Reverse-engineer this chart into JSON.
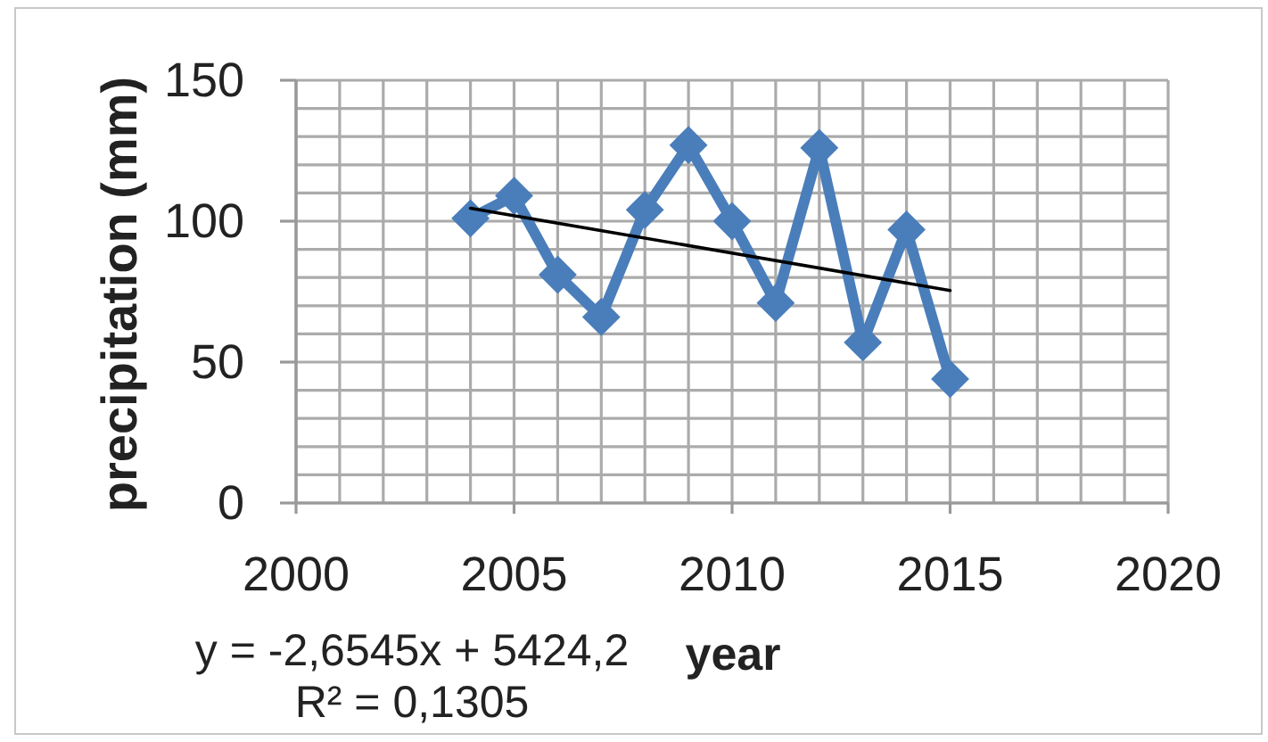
{
  "chart_data": {
    "type": "line",
    "xlabel": "year",
    "ylabel": "precipitation (mm)",
    "x": [
      2004,
      2005,
      2006,
      2007,
      2008,
      2009,
      2010,
      2011,
      2012,
      2013,
      2014,
      2015
    ],
    "series": [
      {
        "color": "#4a7ebb",
        "values": [
          101,
          109,
          81,
          66,
          104,
          127,
          100,
          71,
          126,
          57,
          97,
          44
        ]
      },
      {
        "type": "line",
        "x": [
          2004,
          2015
        ],
        "values": [
          104.6,
          75.4
        ],
        "color": "#000000",
        "marker": "none"
      }
    ],
    "xlim": [
      2000,
      2020
    ],
    "xticks": [
      2000,
      {
        "value": 2001,
        "label": null
      },
      {
        "value": 2002,
        "label": null
      },
      {
        "value": 2003,
        "label": null
      },
      {
        "value": 2004,
        "label": null
      },
      2005,
      {
        "value": 2006,
        "label": null
      },
      {
        "value": 2007,
        "label": null
      },
      {
        "value": 2008,
        "label": null
      },
      {
        "value": 2009,
        "label": null
      },
      2010,
      {
        "value": 2011,
        "label": null
      },
      {
        "value": 2012,
        "label": null
      },
      {
        "value": 2013,
        "label": null
      },
      {
        "value": 2014,
        "label": null
      },
      2015,
      {
        "value": 2016,
        "label": null
      },
      {
        "value": 2017,
        "label": null
      },
      {
        "value": 2018,
        "label": null
      },
      {
        "value": 2019,
        "label": null
      },
      2020
    ],
    "ylim": [
      0,
      150
    ],
    "yticks": [
      0,
      {
        "value": 10,
        "label": null
      },
      {
        "value": 20,
        "label": null
      },
      {
        "value": 30,
        "label": null
      },
      {
        "value": 40,
        "label": null
      },
      50,
      {
        "value": 60,
        "label": null
      },
      {
        "value": 70,
        "label": null
      },
      {
        "value": 80,
        "label": null
      },
      {
        "value": 90,
        "label": null
      },
      100,
      {
        "value": 110,
        "label": null
      },
      {
        "value": 120,
        "label": null
      },
      {
        "value": 130,
        "label": null
      },
      {
        "value": 140,
        "label": null
      },
      150
    ],
    "grid": true,
    "marker": "diamond",
    "annotations": [
      "y = -2,6545x + 5424,2",
      "R² = 0,1305"
    ]
  }
}
